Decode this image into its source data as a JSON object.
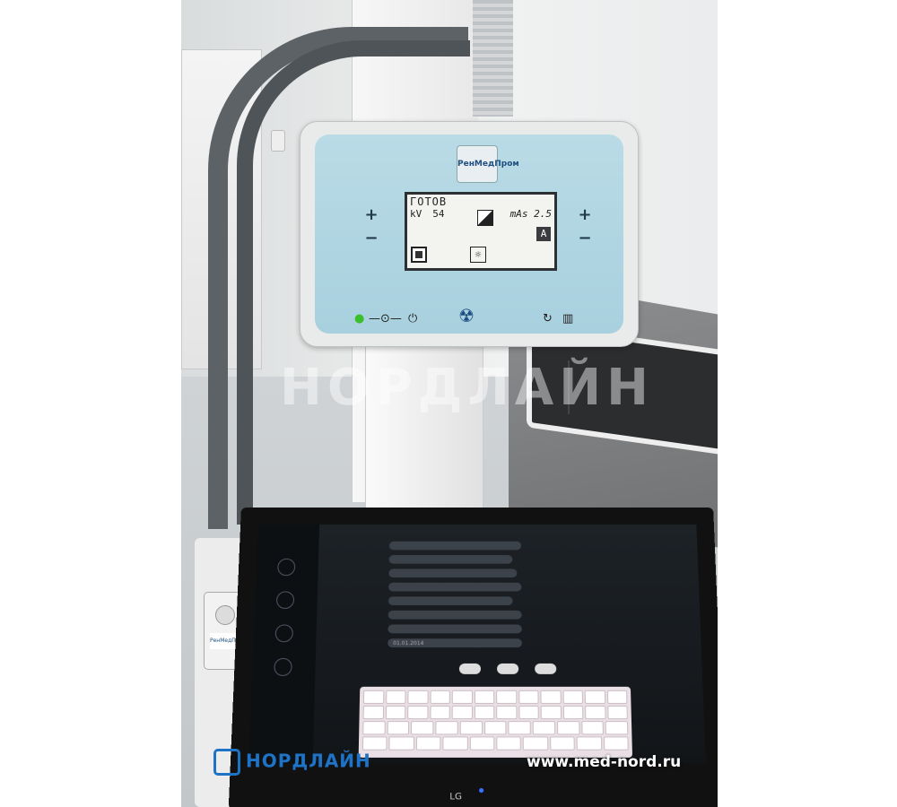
{
  "panel": {
    "logo_text": "РенМедПром",
    "lcd": {
      "status": "ГОТОВ",
      "kv_label": "kV",
      "kv_value": "54",
      "mas_label": "mAs",
      "mas_value": "2.5",
      "mode": "A"
    },
    "plus": "+",
    "minus": "−"
  },
  "watermark": {
    "brand": "НОРДЛАЙН",
    "url": "www.med-nord.ru"
  },
  "monitor": {
    "brand": "LG",
    "form_date": "01.01.2014"
  },
  "remote": {
    "tag": "РенМедПром"
  },
  "colors": {
    "panel_face": "#a8d0de",
    "watermark_blue": "#1e73c6",
    "ready_led": "#3bbf2a"
  }
}
